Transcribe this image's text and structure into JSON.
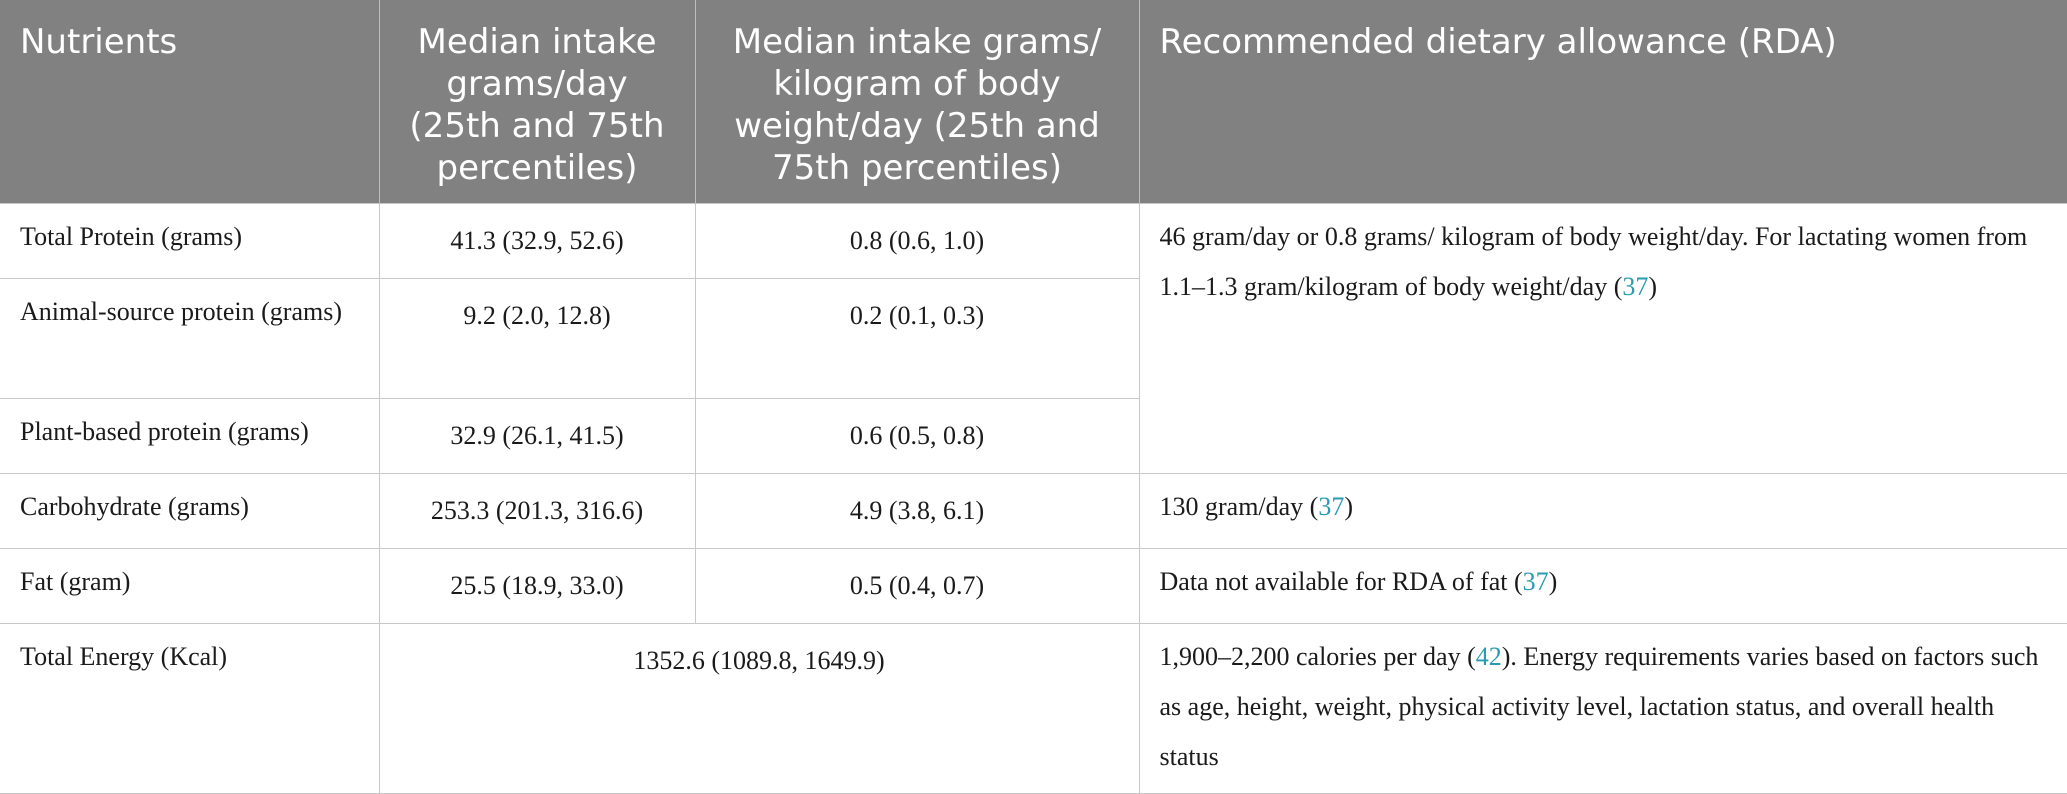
{
  "headers": [
    "Nutrients",
    "Median intake grams/day (25th and 75th percentiles)",
    "Median intake grams/ kilogram of body weight/day (25th and 75th percentiles)",
    "Recommended dietary allowance (RDA)"
  ],
  "rows": [
    {
      "nutrient": "Total Protein (grams)",
      "per_day": "41.3 (32.9, 52.6)",
      "per_kg": "0.8 (0.6, 1.0)"
    },
    {
      "nutrient": "Animal-source protein (grams)",
      "per_day": "9.2 (2.0, 12.8)",
      "per_kg": "0.2 (0.1, 0.3)"
    },
    {
      "nutrient": "Plant-based protein (grams)",
      "per_day": "32.9 (26.1, 41.5)",
      "per_kg": "0.6 (0.5, 0.8)"
    },
    {
      "nutrient": "Carbohydrate (grams)",
      "per_day": "253.3 (201.3, 316.6)",
      "per_kg": "4.9 (3.8, 6.1)"
    },
    {
      "nutrient": "Fat (gram)",
      "per_day": "25.5 (18.9, 33.0)",
      "per_kg": "0.5 (0.4, 0.7)"
    },
    {
      "nutrient": "Total Energy (Kcal)",
      "combined": "1352.6 (1089.8, 1649.9)"
    }
  ],
  "rda": {
    "protein_text": "46 gram/day or 0.8 grams/ kilogram of body weight/day. For lactating women from 1.1–1.3 gram/kilogram of body weight/day (",
    "protein_ref": "37",
    "protein_end": ")",
    "carb_text": "130 gram/day (",
    "carb_ref": "37",
    "carb_end": ")",
    "fat_text": "Data not available for RDA of fat (",
    "fat_ref": "37",
    "fat_end": ")",
    "energy_text_1": "1,900–2,200 calories per day (",
    "energy_ref": "42",
    "energy_text_2": "). Energy requirements varies based on factors such as age, height, weight, physical activity level, lactation status, and overall health status"
  },
  "colors": {
    "header_bg": "#808180",
    "reference_link": "#2a9bb0"
  }
}
